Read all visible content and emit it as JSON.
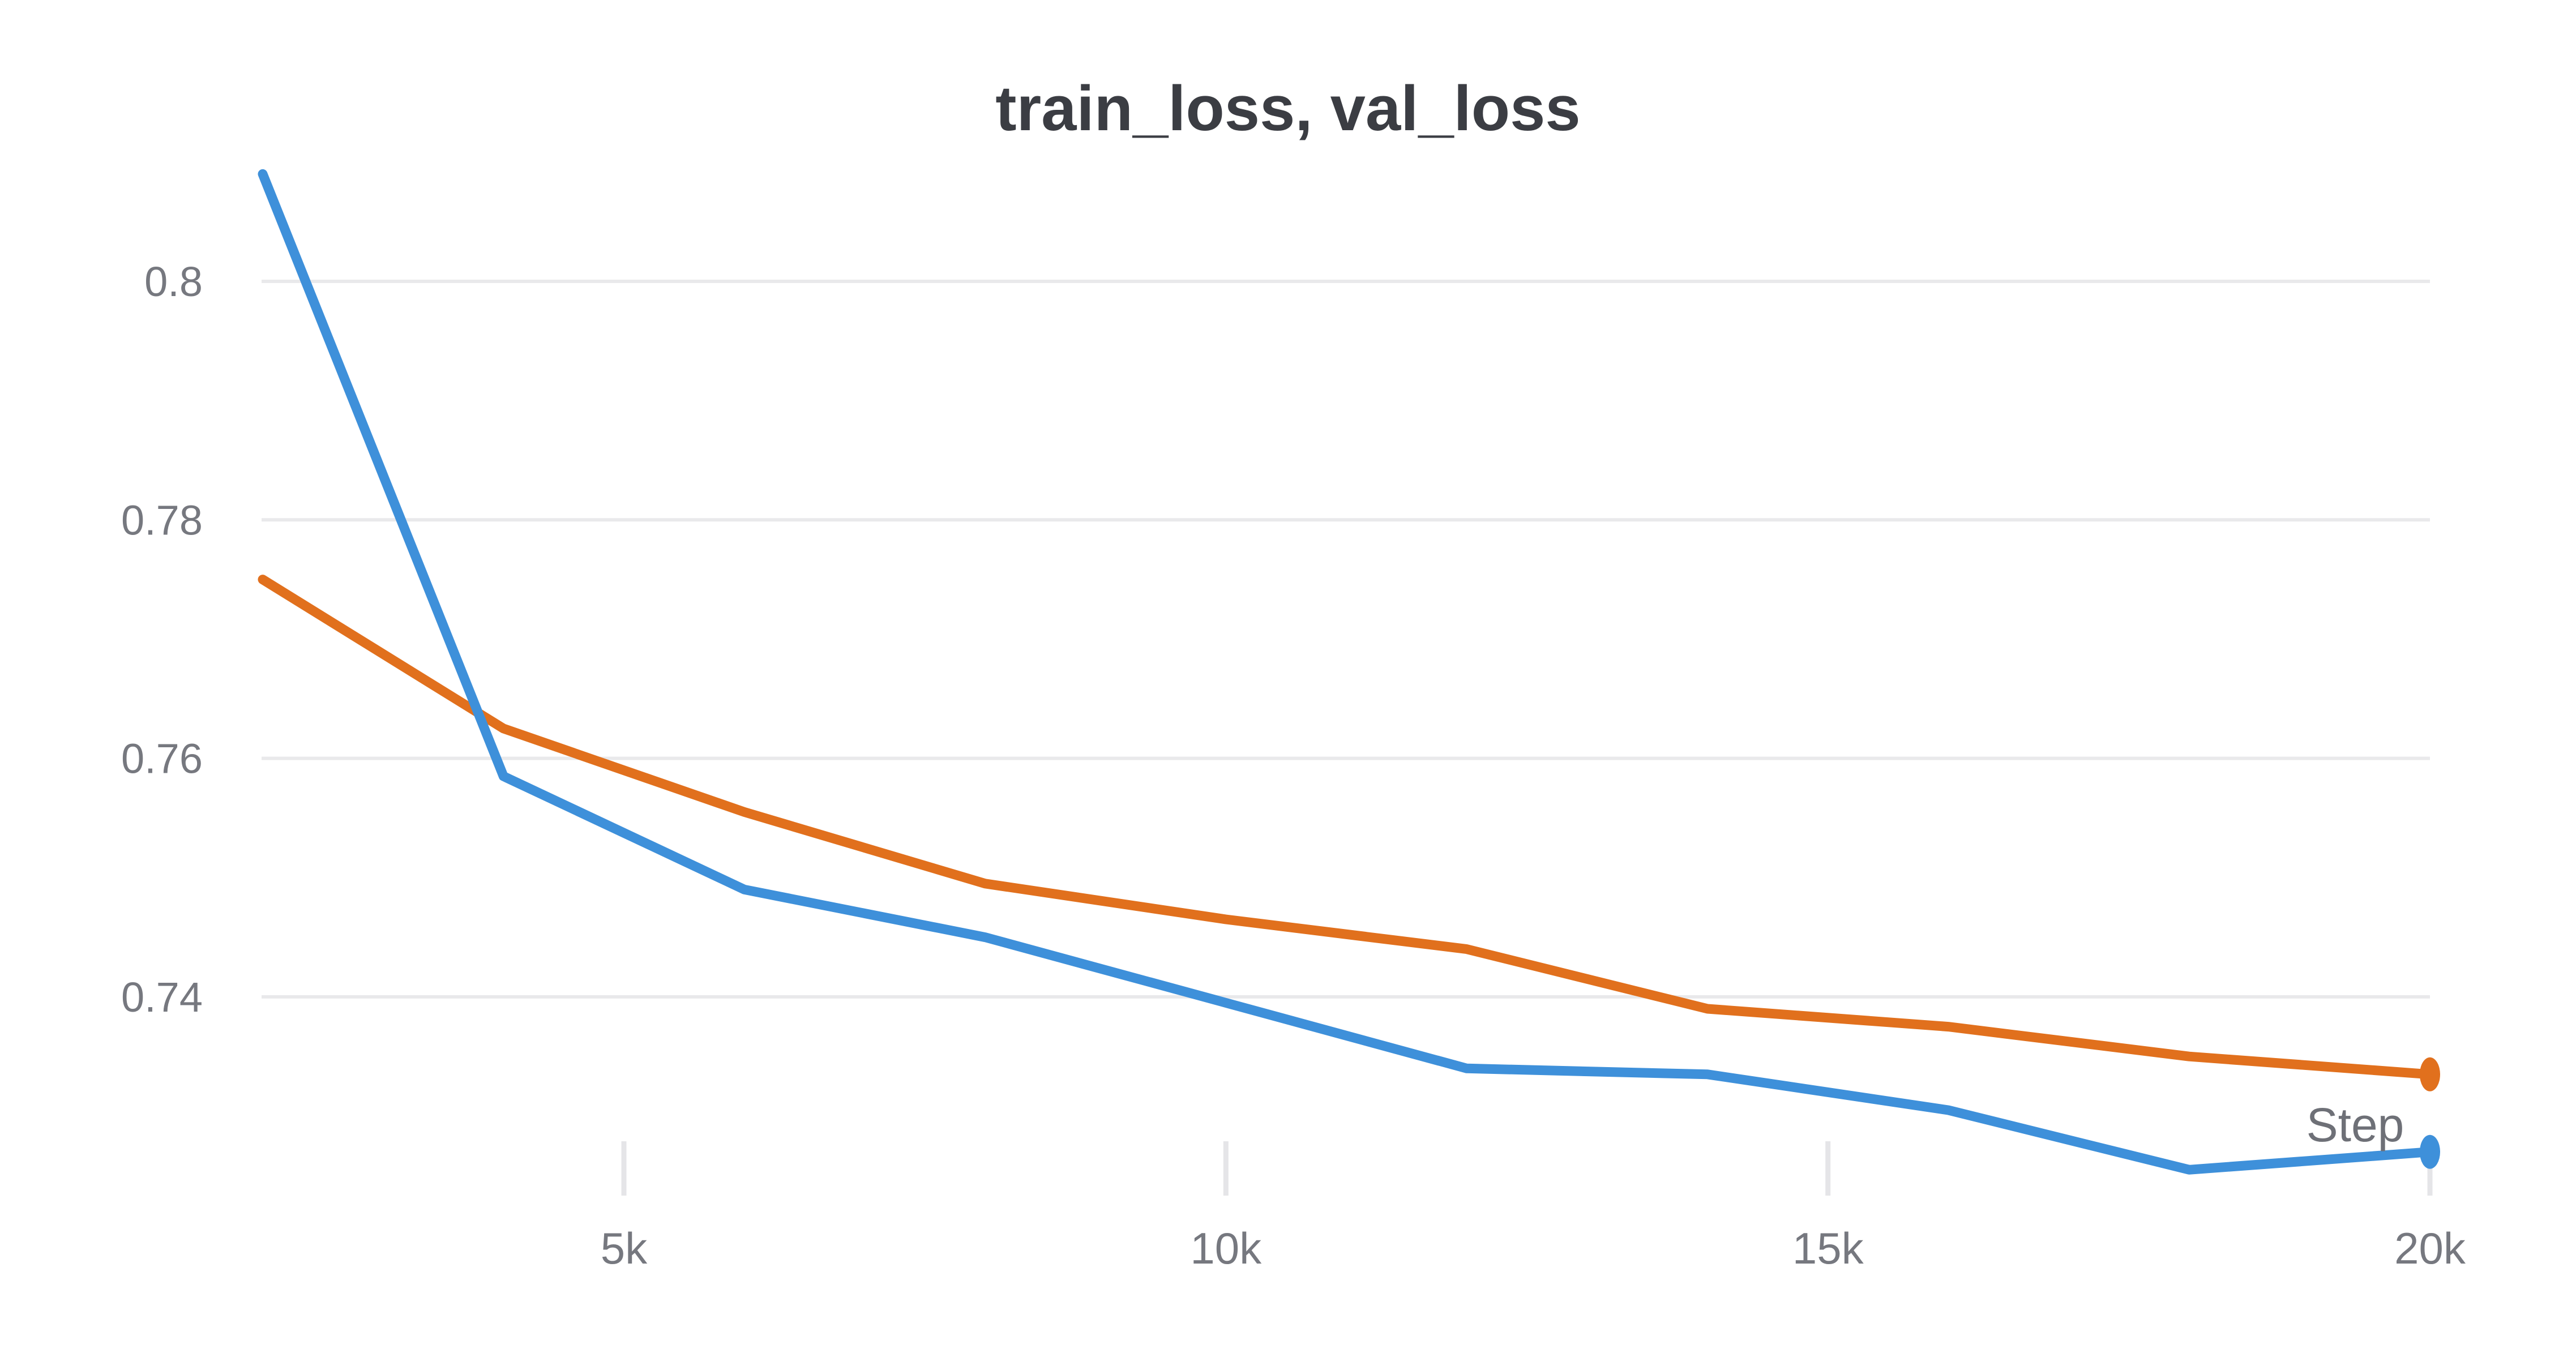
{
  "title": "train_loss, val_loss",
  "x_axis": {
    "label": "Step",
    "tick_labels": [
      "5k",
      "10k",
      "15k",
      "20k"
    ],
    "tick_steps": [
      5000,
      10000,
      15000,
      20000
    ]
  },
  "y_axis": {
    "tick_labels": [
      "0.8",
      "0.78",
      "0.76",
      "0.74"
    ],
    "tick_values": [
      0.8,
      0.78,
      0.76,
      0.74
    ]
  },
  "colors": {
    "train_loss": "#3e90da",
    "val_loss": "#e1701d",
    "gridline": "#e9e9eb",
    "axis_tick": "#e5e5e8",
    "tick_label": "#76787f",
    "title": "#3b3d43"
  },
  "chart_data": {
    "type": "line",
    "title": "train_loss, val_loss",
    "xlabel": "Step",
    "ylabel": "",
    "x": [
      2000,
      4000,
      6000,
      8000,
      10000,
      12000,
      14000,
      16000,
      18000,
      20000
    ],
    "series": [
      {
        "name": "train_loss",
        "color": "#3e90da",
        "values": [
          0.809,
          0.7585,
          0.749,
          0.745,
          0.7395,
          0.734,
          0.7335,
          0.7305,
          0.7255,
          0.727
        ]
      },
      {
        "name": "val_loss",
        "color": "#e1701d",
        "values": [
          0.775,
          0.7625,
          0.7555,
          0.7495,
          0.7465,
          0.744,
          0.739,
          0.7375,
          0.735,
          0.7335
        ]
      }
    ],
    "xlim": [
      2000,
      20000
    ],
    "ylim": [
      0.722,
      0.814
    ],
    "x_tick_labels": [
      "5k",
      "10k",
      "15k",
      "20k"
    ],
    "x_tick_values": [
      5000,
      10000,
      15000,
      20000
    ],
    "y_tick_labels": [
      "0.8",
      "0.78",
      "0.76",
      "0.74"
    ],
    "y_tick_values": [
      0.8,
      0.78,
      0.76,
      0.74
    ],
    "grid": true,
    "legend_position": "none",
    "end_markers": true
  }
}
